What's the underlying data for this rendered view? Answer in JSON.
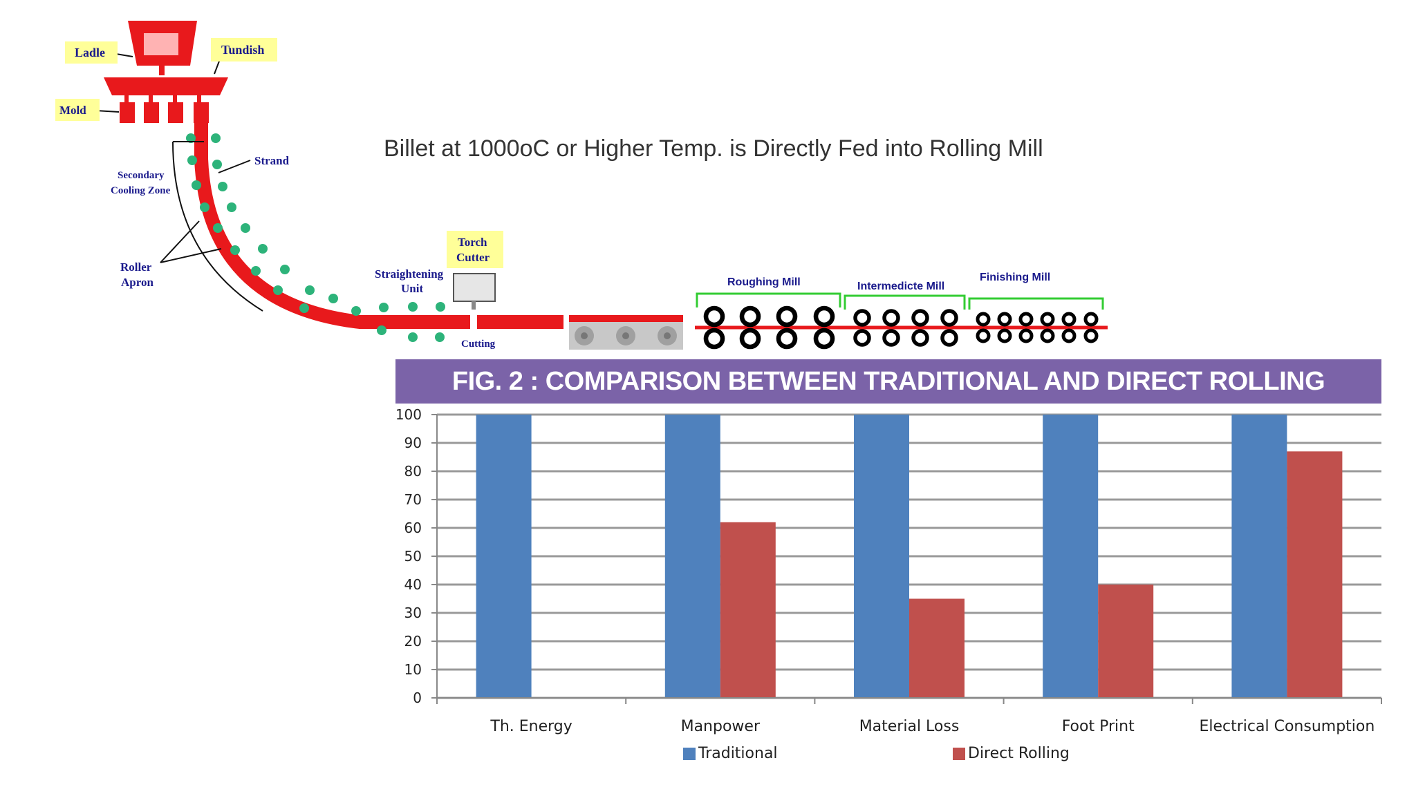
{
  "diagram": {
    "headline": "Billet at 1000oC or Higher Temp. is Directly Fed into Rolling Mill",
    "labels": {
      "ladle": "Ladle",
      "tundish": "Tundish",
      "mold": "Mold",
      "strand": "Strand",
      "secondary_1": "Secondary",
      "secondary_2": "Cooling Zone",
      "roller_1": "Roller",
      "roller_2": "Apron",
      "straight_1": "Straightening",
      "straight_2": "Unit",
      "torch_1": "Torch",
      "torch_2": "Cutter",
      "cutting": "Cutting",
      "roughing": "Roughing Mill",
      "intermediate": "Intermedicte Mill",
      "finishing": "Finishing Mill"
    },
    "colors": {
      "steel": "#e8191c",
      "label_bg": "#ffff99",
      "label_text": "#1a1a8c",
      "rollers": "#2db37a",
      "mill_bracket": "#33cc33"
    }
  },
  "chart_data": {
    "type": "bar",
    "title": "FIG. 2 : COMPARISON BETWEEN TRADITIONAL AND DIRECT ROLLING",
    "categories": [
      "Th. Energy",
      "Manpower",
      "Material Loss",
      "Foot Print",
      "Electrical Consumption"
    ],
    "series": [
      {
        "name": "Traditional",
        "color": "#4f81bd",
        "values": [
          100,
          100,
          100,
          100,
          100
        ]
      },
      {
        "name": "Direct Rolling",
        "color": "#c0504d",
        "values": [
          0,
          62,
          35,
          40,
          87
        ]
      }
    ],
    "ylim": [
      0,
      100
    ],
    "yticks": [
      0,
      10,
      20,
      30,
      40,
      50,
      60,
      70,
      80,
      90,
      100
    ],
    "grid": true,
    "legend": "bottom",
    "banner_color": "#7b63a8"
  }
}
